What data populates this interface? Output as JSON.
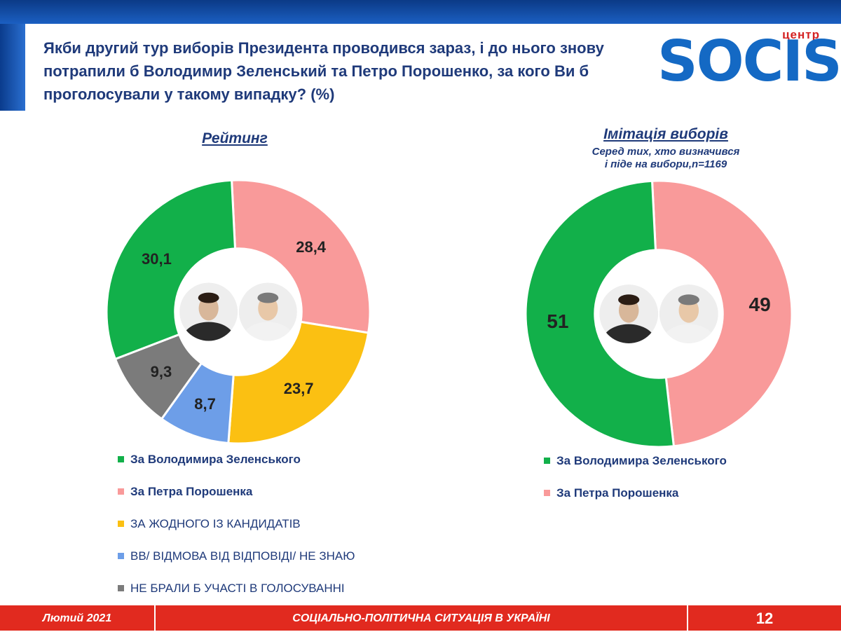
{
  "question": "Якби другий тур виборів Президента проводився зараз, і до нього знову потрапили б Володимир Зеленський та Петро Порошенко, за кого Ви б проголосували у такому випадку? (%)",
  "logo": {
    "small": "центр",
    "main": "SOCIS"
  },
  "colors": {
    "green": "#12b04a",
    "pink": "#f99a9a",
    "yellow": "#fbc012",
    "blue": "#6d9ee8",
    "gray": "#7b7b7b"
  },
  "chart_data": [
    {
      "type": "pie",
      "title": "Рейтинг",
      "categories": [
        "За Володимира Зеленського",
        "За Петра Порошенка",
        "ЗА ЖОДНОГО ІЗ КАНДИДАТІВ",
        "ВВ/ ВІДМОВА ВІД ВІДПОВІДІ/ НЕ ЗНАЮ",
        "НЕ БРАЛИ Б УЧАСТІ В ГОЛОСУВАННІ"
      ],
      "values": [
        30.1,
        28.4,
        23.7,
        8.7,
        9.3
      ],
      "data_labels": [
        "30,1",
        "28,4",
        "23,7",
        "8,7",
        "9,3"
      ],
      "order": [
        1,
        2,
        3,
        4,
        0
      ],
      "colors": [
        "#12b04a",
        "#f99a9a",
        "#fbc012",
        "#6d9ee8",
        "#7b7b7b"
      ],
      "legend": "bottom-left"
    },
    {
      "type": "pie",
      "title": "Імітація виборів",
      "subtitle": [
        "Серед тих, хто визначився",
        "і піде на вибори,n=1169"
      ],
      "categories": [
        "За Володимира Зеленського",
        "За Петра Порошенка"
      ],
      "values": [
        51,
        49
      ],
      "data_labels": [
        "51",
        "49"
      ],
      "order": [
        1,
        0
      ],
      "colors": [
        "#12b04a",
        "#f99a9a"
      ],
      "legend": "bottom-right"
    }
  ],
  "footer": {
    "date": "Лютий 2021",
    "title": "СОЦІАЛЬНО-ПОЛІТИЧНА СИТУАЦІЯ В УКРАЇНІ",
    "page": "12"
  }
}
